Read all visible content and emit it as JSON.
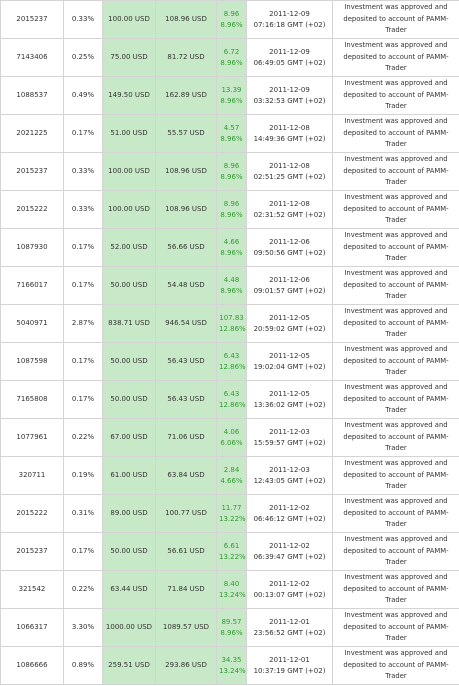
{
  "table": {
    "rows": [
      {
        "account": "2015237",
        "share": "0.33%",
        "invested": "100.00 USD",
        "result": "108.96 USD",
        "profit": "8.96",
        "profit_pct": "8.96%",
        "date": "2011-12-09",
        "time": "07:16:18 GMT (+02)",
        "status": "Investment was approved and deposited to account of PAMM-Trader"
      },
      {
        "account": "7143406",
        "share": "0.25%",
        "invested": "75.00 USD",
        "result": "81.72 USD",
        "profit": "6.72",
        "profit_pct": "8.96%",
        "date": "2011-12-09",
        "time": "06:49:05 GMT (+02)",
        "status": "Investment was approved and deposited to account of PAMM-Trader"
      },
      {
        "account": "1088537",
        "share": "0.49%",
        "invested": "149.50 USD",
        "result": "162.89 USD",
        "profit": "13.39",
        "profit_pct": "8.96%",
        "date": "2011-12-09",
        "time": "03:32:53 GMT (+02)",
        "status": "Investment was approved and deposited to account of PAMM-Trader"
      },
      {
        "account": "2021225",
        "share": "0.17%",
        "invested": "51.00 USD",
        "result": "55.57 USD",
        "profit": "4.57",
        "profit_pct": "8.96%",
        "date": "2011-12-08",
        "time": "14:49:36 GMT (+02)",
        "status": "Investment was approved and deposited to account of PAMM-Trader"
      },
      {
        "account": "2015237",
        "share": "0.33%",
        "invested": "100.00 USD",
        "result": "108.96 USD",
        "profit": "8.96",
        "profit_pct": "8.96%",
        "date": "2011-12-08",
        "time": "02:51:25 GMT (+02)",
        "status": "Investment was approved and deposited to account of PAMM-Trader"
      },
      {
        "account": "2015222",
        "share": "0.33%",
        "invested": "100.00 USD",
        "result": "108.96 USD",
        "profit": "8.96",
        "profit_pct": "8.96%",
        "date": "2011-12-08",
        "time": "02:31:52 GMT (+02)",
        "status": "Investment was approved and deposited to account of PAMM-Trader"
      },
      {
        "account": "1087930",
        "share": "0.17%",
        "invested": "52.00 USD",
        "result": "56.66 USD",
        "profit": "4.66",
        "profit_pct": "8.96%",
        "date": "2011-12-06",
        "time": "09:50:56 GMT (+02)",
        "status": "Investment was approved and deposited to account of PAMM-Trader"
      },
      {
        "account": "7166017",
        "share": "0.17%",
        "invested": "50.00 USD",
        "result": "54.48 USD",
        "profit": "4.48",
        "profit_pct": "8.96%",
        "date": "2011-12-06",
        "time": "09:01:57 GMT (+02)",
        "status": "Investment was approved and deposited to account of PAMM-Trader"
      },
      {
        "account": "5040971",
        "share": "2.87%",
        "invested": "838.71 USD",
        "result": "946.54 USD",
        "profit": "107.83",
        "profit_pct": "12.86%",
        "date": "2011-12-05",
        "time": "20:59:02 GMT (+02)",
        "status": "Investment was approved and deposited to account of PAMM-Trader"
      },
      {
        "account": "1087598",
        "share": "0.17%",
        "invested": "50.00 USD",
        "result": "56.43 USD",
        "profit": "6.43",
        "profit_pct": "12.86%",
        "date": "2011-12-05",
        "time": "19:02:04 GMT (+02)",
        "status": "Investment was approved and deposited to account of PAMM-Trader"
      },
      {
        "account": "7165808",
        "share": "0.17%",
        "invested": "50.00 USD",
        "result": "56.43 USD",
        "profit": "6.43",
        "profit_pct": "12.86%",
        "date": "2011-12-05",
        "time": "13:36:02 GMT (+02)",
        "status": "Investment was approved and deposited to account of PAMM-Trader"
      },
      {
        "account": "1077961",
        "share": "0.22%",
        "invested": "67.00 USD",
        "result": "71.06 USD",
        "profit": "4.06",
        "profit_pct": "6.06%",
        "date": "2011-12-03",
        "time": "15:59:57 GMT (+02)",
        "status": "Investment was approved and deposited to account of PAMM-Trader"
      },
      {
        "account": "320711",
        "share": "0.19%",
        "invested": "61.00 USD",
        "result": "63.84 USD",
        "profit": "2.84",
        "profit_pct": "4.66%",
        "date": "2011-12-03",
        "time": "12:43:05 GMT (+02)",
        "status": "Investment was approved and deposited to account of PAMM-Trader"
      },
      {
        "account": "2015222",
        "share": "0.31%",
        "invested": "89.00 USD",
        "result": "100.77 USD",
        "profit": "11.77",
        "profit_pct": "13.22%",
        "date": "2011-12-02",
        "time": "06:46:12 GMT (+02)",
        "status": "Investment was approved and deposited to account of PAMM-Trader"
      },
      {
        "account": "2015237",
        "share": "0.17%",
        "invested": "50.00 USD",
        "result": "56.61 USD",
        "profit": "6.61",
        "profit_pct": "13.22%",
        "date": "2011-12-02",
        "time": "06:39:47 GMT (+02)",
        "status": "Investment was approved and deposited to account of PAMM-Trader"
      },
      {
        "account": "321542",
        "share": "0.22%",
        "invested": "63.44 USD",
        "result": "71.84 USD",
        "profit": "8.40",
        "profit_pct": "13.24%",
        "date": "2011-12-02",
        "time": "00:13:07 GMT (+02)",
        "status": "Investment was approved and deposited to account of PAMM-Trader"
      },
      {
        "account": "1066317",
        "share": "3.30%",
        "invested": "1000.00 USD",
        "result": "1089.57 USD",
        "profit": "89.57",
        "profit_pct": "8.96%",
        "date": "2011-12-01",
        "time": "23:56:52 GMT (+02)",
        "status": "Investment was approved and deposited to account of PAMM-Trader"
      },
      {
        "account": "1086666",
        "share": "0.89%",
        "invested": "259.51 USD",
        "result": "293.86 USD",
        "profit": "34.35",
        "profit_pct": "13.24%",
        "date": "2011-12-01",
        "time": "10:37:19 GMT (+02)",
        "status": "Investment was approved and deposited to account of PAMM-Trader"
      }
    ]
  }
}
